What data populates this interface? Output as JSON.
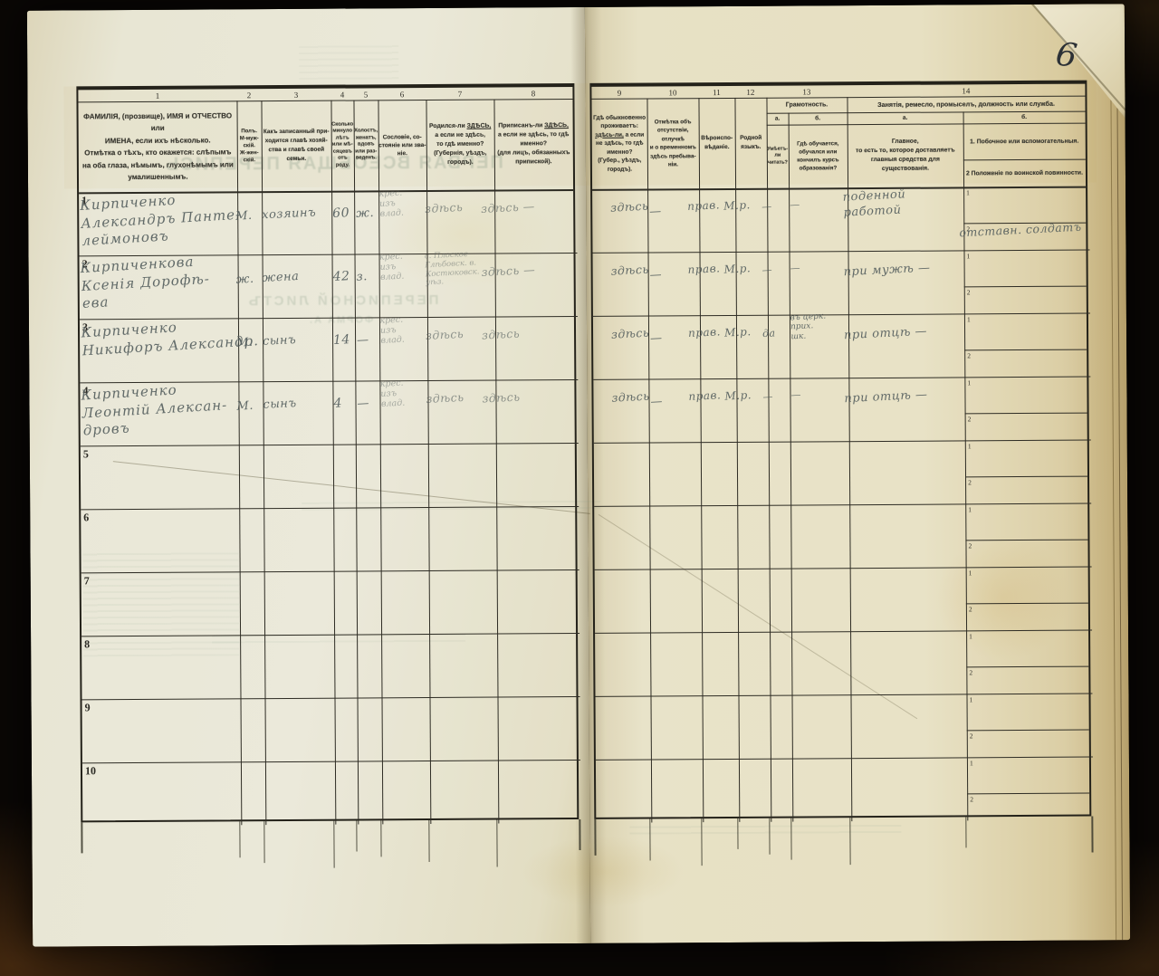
{
  "page": {
    "folio_number": "6"
  },
  "bleedthrough": {
    "title_large": "ПЕРВАЯ ВСЕОБЩАЯ ПЕРЕПИСЬ",
    "title_mid": "ПЕРЕПИСНОЙ ЛИСТЪ",
    "title_small": "ФОРМА А."
  },
  "header": {
    "numbers": {
      "c1": "1",
      "c2": "2",
      "c3": "3",
      "c4": "4",
      "c5": "5",
      "c6": "6",
      "c7": "7",
      "c8": "8",
      "c9": "9",
      "c10": "10",
      "c11": "11",
      "c12": "12",
      "c13": "13",
      "c14": "14"
    },
    "col1": "ФАМИЛІЯ, (прозвище), ИМЯ и ОТЧЕСТВО или\nИМЕНА, если ихъ нѣсколько.\nОтмѣтка о тѣхъ, кто окажется: слѣпымъ\nна оба глаза, нѣмымъ, глухонѣмымъ или\nумалишеннымъ.",
    "col2": "Полъ.\nМ-муж-\nскій.\nЖ-жен-\nскій.",
    "col3": "Какъ записанный при-\nходится главѣ хозяй-\nства и главѣ своей\nсемьи.",
    "col4": "Сколько\nминуло\nлѣтъ\nили мѣ-\nсяцевъ\nотъ роду.",
    "col5": "Холостъ,\nженатъ,\nвдовъ\nили раз-\nведенъ.",
    "col6": "Сословіе, со-\nстояніе или зва-\nніе.",
    "col7": {
      "pre": "Родился-ли ",
      "em": "ЗДѢСЬ,",
      "rest": "\nа если не здѣсь,\nто гдѣ именно?\n(Губернія, уѣздъ, городъ)."
    },
    "col8": {
      "pre": "Приписанъ-ли ",
      "em": "ЗДѢСЬ,",
      "rest": "\nа если не здѣсь, то гдѣ\nименно?\n(для лицъ, обязанныхъ\nприпиской)."
    },
    "col9": {
      "pre": "Гдѣ обыкновенно\nпроживаетъ:\n",
      "em": "здѣсь-ли,",
      "rest": " а если\nне здѣсь, то гдѣ\nименно?\n(Губер., уѣздъ, городъ)."
    },
    "col10": "Отмѣтка объ\nотсутствіи, отлучкѣ\nи о временномъ\nздѣсь пребыва-\nніи.",
    "col11": "Вѣроиспо-\nвѣданіе.",
    "col12": "Родной\nязыкъ.",
    "col13": {
      "title": "Грамотность.",
      "a": "а.",
      "b": "б.",
      "a_desc": "Умѣетъ-\nли\nчитать?",
      "b_desc": "Гдѣ обучается,\nобучался или\nкончилъ курсъ\nобразованія?"
    },
    "col14": {
      "title": "Занятія, ремесло, промыселъ, должность или служба.",
      "a": "а.",
      "b": "б.",
      "a_desc": "Главное,\nто есть то, которое доставляетъ\nглавныя средства для существованія.",
      "b_item1": "1.  Побочное или вспомогательныя.",
      "b_item2": "2   Положеніе по воинской повинности."
    }
  },
  "sub_cell_labels": {
    "first": "1",
    "second": "2"
  },
  "rows": [
    {
      "num": "1",
      "name": "Кирпиченко\nАлександръ Панте-\nлеймоновъ",
      "sex": "М.",
      "relation": "хозяинъ",
      "age": "60",
      "marital": "ж.",
      "estate": "крес.\nизъ\nвлад.",
      "born": "здѣсь",
      "registered": "здѣсь —",
      "resides": "здѣсь",
      "absence": "—",
      "religion": "прав.",
      "language": "М.р.",
      "reads": "—",
      "education": "—",
      "occ_main": "поденной\nработой",
      "occ_side": "отставн. солдатъ"
    },
    {
      "num": "2",
      "name": "Кирпиченкова\nКсенія Дорофѣ-\nева",
      "sex": "ж.",
      "relation": "жена",
      "age": "42",
      "marital": "з.",
      "estate": "крес.\nизъ\nвлад.",
      "born": "с. Плоское\nГлѣбовск. в.\nКостюковск.\nуѣз.",
      "registered": "здѣсь —",
      "resides": "здѣсь",
      "absence": "—",
      "religion": "прав.",
      "language": "М.р.",
      "reads": "—",
      "education": "—",
      "occ_main": "при мужѣ —",
      "occ_side": ""
    },
    {
      "num": "3",
      "name": "Кирпиченко\nНикифоръ Александр.",
      "sex": "М.",
      "relation": "сынъ",
      "age": "14",
      "marital": "—",
      "estate": "крес.\nизъ\nвлад.",
      "born": "здѣсь",
      "registered": "здѣсь",
      "resides": "здѣсь",
      "absence": "—",
      "religion": "прав.",
      "language": "М.р.",
      "reads": "да",
      "education": "въ церк.\nприх.\nшк.",
      "occ_main": "при отцѣ —",
      "occ_side": ""
    },
    {
      "num": "4",
      "name": "Кирпиченко\nЛеонтій Алексан-\nдровъ",
      "sex": "М.",
      "relation": "сынъ",
      "age": "4",
      "marital": "—",
      "estate": "крес.\nизъ\nвлад.",
      "born": "здѣсь",
      "registered": "здѣсь",
      "resides": "здѣсь",
      "absence": "—",
      "religion": "прав.",
      "language": "М.р.",
      "reads": "—",
      "education": "—",
      "occ_main": "при отцѣ —",
      "occ_side": ""
    },
    {
      "num": "5",
      "name": "",
      "sex": "",
      "relation": "",
      "age": "",
      "marital": "",
      "estate": "",
      "born": "",
      "registered": "",
      "resides": "",
      "absence": "",
      "religion": "",
      "language": "",
      "reads": "",
      "education": "",
      "occ_main": "",
      "occ_side": ""
    },
    {
      "num": "6",
      "name": "",
      "sex": "",
      "relation": "",
      "age": "",
      "marital": "",
      "estate": "",
      "born": "",
      "registered": "",
      "resides": "",
      "absence": "",
      "religion": "",
      "language": "",
      "reads": "",
      "education": "",
      "occ_main": "",
      "occ_side": ""
    },
    {
      "num": "7",
      "name": "",
      "sex": "",
      "relation": "",
      "age": "",
      "marital": "",
      "estate": "",
      "born": "",
      "registered": "",
      "resides": "",
      "absence": "",
      "religion": "",
      "language": "",
      "reads": "",
      "education": "",
      "occ_main": "",
      "occ_side": ""
    },
    {
      "num": "8",
      "name": "",
      "sex": "",
      "relation": "",
      "age": "",
      "marital": "",
      "estate": "",
      "born": "",
      "registered": "",
      "resides": "",
      "absence": "",
      "religion": "",
      "language": "",
      "reads": "",
      "education": "",
      "occ_main": "",
      "occ_side": ""
    },
    {
      "num": "9",
      "name": "",
      "sex": "",
      "relation": "",
      "age": "",
      "marital": "",
      "estate": "",
      "born": "",
      "registered": "",
      "resides": "",
      "absence": "",
      "religion": "",
      "language": "",
      "reads": "",
      "education": "",
      "occ_main": "",
      "occ_side": ""
    },
    {
      "num": "10",
      "name": "",
      "sex": "",
      "relation": "",
      "age": "",
      "marital": "",
      "estate": "",
      "born": "",
      "registered": "",
      "resides": "",
      "absence": "",
      "religion": "",
      "language": "",
      "reads": "",
      "education": "",
      "occ_main": "",
      "occ_side": ""
    }
  ]
}
